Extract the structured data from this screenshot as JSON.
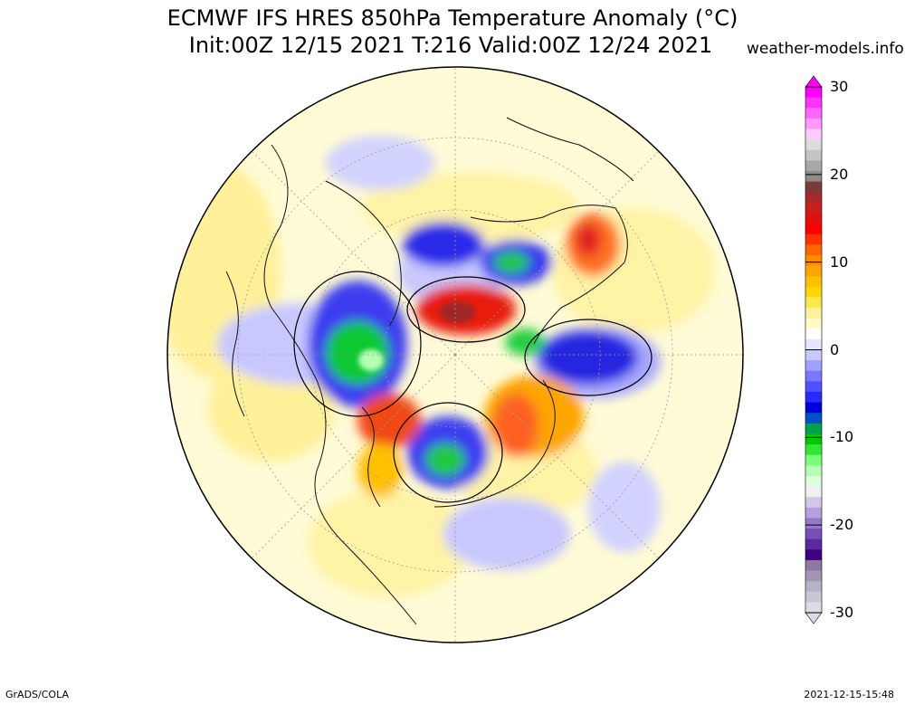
{
  "title_line1": "ECMWF IFS HRES 850hPa Temperature Anomaly (°C)",
  "title_line2": "Init:00Z 12/15 2021 T:216 Valid:00Z 12/24 2021",
  "source": "weather-models.info",
  "footer_left": "GrADS/COLA",
  "footer_right": "2021-12-15-15:48",
  "colorbar": {
    "labels": [
      "30",
      "20",
      "10",
      "0",
      "-10",
      "-20",
      "-30"
    ],
    "colors": [
      "#ff00ff",
      "#ff33ff",
      "#ff66ff",
      "#ff99ff",
      "#ffccff",
      "#dcdcdc",
      "#c4c4c4",
      "#a8a8a8",
      "#8c8c8c",
      "#7a3b3b",
      "#a52a2a",
      "#c81e1e",
      "#e01010",
      "#ff0000",
      "#ff3300",
      "#ff6600",
      "#ff8c00",
      "#ffa500",
      "#ffc000",
      "#ffd700",
      "#ffe84d",
      "#fff299",
      "#fffac8",
      "#ffffff",
      "#e6e6ff",
      "#c8c8ff",
      "#a0a0ff",
      "#7878ff",
      "#5050ff",
      "#2828ff",
      "#0000dc",
      "#0050c8",
      "#00a050",
      "#00c800",
      "#32e632",
      "#78ff78",
      "#b4ffb4",
      "#dcffdc",
      "#f0f0f0",
      "#d2c8e6",
      "#b4a0dc",
      "#9678c8",
      "#7850b4",
      "#5a28a0",
      "#3c0080",
      "#8c78a0",
      "#a096b4",
      "#b4b4c8",
      "#c8c8d2",
      "#dcdce6"
    ]
  }
}
